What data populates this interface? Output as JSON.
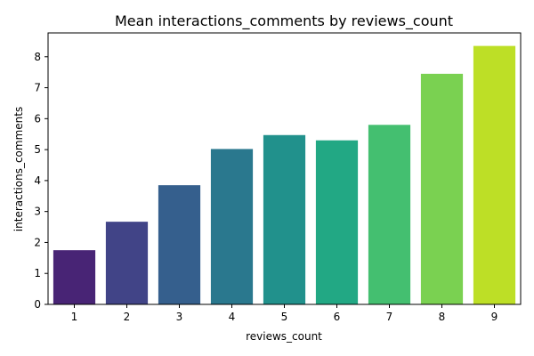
{
  "chart_data": {
    "type": "bar",
    "title": "Mean interactions_comments by reviews_count",
    "xlabel": "reviews_count",
    "ylabel": "interactions_comments",
    "categories": [
      "1",
      "2",
      "3",
      "4",
      "5",
      "6",
      "7",
      "8",
      "9"
    ],
    "values": [
      1.75,
      2.67,
      3.85,
      5.02,
      5.47,
      5.3,
      5.8,
      7.45,
      8.35
    ],
    "ylim": [
      0,
      8.77
    ],
    "yticks": [
      0,
      1,
      2,
      3,
      4,
      5,
      6,
      7,
      8
    ],
    "grid": false,
    "legend": "none",
    "colors": [
      "#482475",
      "#414487",
      "#355f8d",
      "#2a788e",
      "#21918c",
      "#22a884",
      "#44bf70",
      "#7ad151",
      "#bddf26"
    ]
  }
}
